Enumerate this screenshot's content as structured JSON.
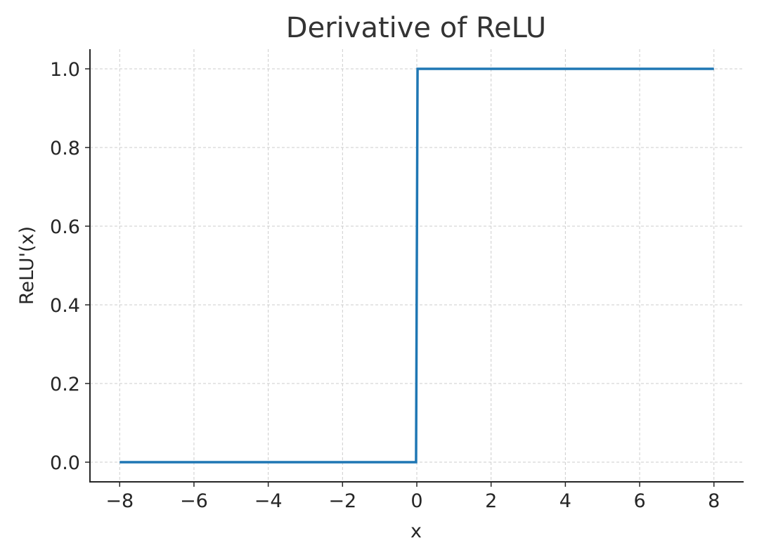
{
  "chart_data": {
    "type": "line",
    "title": "Derivative of ReLU",
    "xlabel": "x",
    "ylabel": "ReLU'(x)",
    "xlim": [
      -8.8,
      8.8
    ],
    "ylim": [
      -0.05,
      1.05
    ],
    "grid": true,
    "x_ticks": [
      -8,
      -6,
      -4,
      -2,
      0,
      2,
      4,
      6,
      8
    ],
    "x_tick_labels": [
      "−8",
      "−6",
      "−4",
      "−2",
      "0",
      "2",
      "4",
      "6",
      "8"
    ],
    "y_ticks": [
      0.0,
      0.2,
      0.4,
      0.6,
      0.8,
      1.0
    ],
    "y_tick_labels": [
      "0.0",
      "0.2",
      "0.4",
      "0.6",
      "0.8",
      "1.0"
    ],
    "series": [
      {
        "name": "ReLU'(x)",
        "color": "#1f77b4",
        "x": [
          -8,
          -0.02,
          0.02,
          8
        ],
        "y": [
          0,
          0,
          1,
          1
        ]
      }
    ]
  }
}
